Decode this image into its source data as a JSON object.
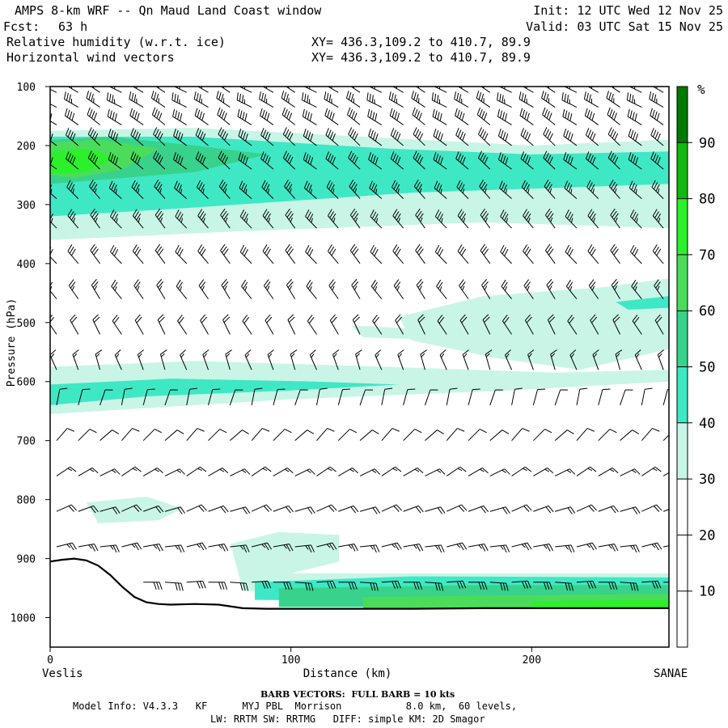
{
  "header": {
    "title": "AMPS 8-km WRF -- Qn Maud Land Coast window",
    "forecast_label": "Fcst:",
    "forecast_value": "63 h",
    "init": "Init: 12 UTC Wed 12 Nov 25",
    "valid": "Valid: 03 UTC Sat 15 Nov 25",
    "field1": "Relative humidity (w.r.t. ice)",
    "field2": "Horizontal wind vectors",
    "xy1": "XY= 436.3,109.2 to 410.7, 89.9",
    "xy2": "XY= 436.3,109.2 to 410.7, 89.9"
  },
  "footer": {
    "barb_note": "BARB VECTORS:  FULL BARB = 10 kts",
    "model_line1": "Model Info: V4.3.3   KF      MYJ PBL  Morrison           8.0 km,  60 levels,",
    "model_line2": "LW: RRTM SW: RRTMG   DIFF: simple KM: 2D Smagor"
  },
  "chart_data": {
    "type": "heatmap",
    "xlabel": "Distance (km)",
    "ylabel": "Pressure (hPa)",
    "x_start_label": "Veslis",
    "x_end_label": "SANAE",
    "xlim": [
      0,
      257
    ],
    "ylim": [
      1050,
      100
    ],
    "x_ticks": [
      0,
      100,
      200
    ],
    "y_ticks": [
      100,
      200,
      300,
      400,
      500,
      600,
      700,
      800,
      900,
      1000
    ],
    "colorbar": {
      "unit": "%",
      "levels": [
        0,
        10,
        20,
        30,
        40,
        50,
        60,
        70,
        80,
        90,
        100
      ],
      "tick_labels": [
        10,
        20,
        30,
        40,
        50,
        60,
        70,
        80,
        90
      ],
      "colors": [
        "#ffffff",
        "#ffffff",
        "#ffffff",
        "#c8f5e6",
        "#3ee8c4",
        "#38d28c",
        "#4cdc5c",
        "#2cf02c",
        "#10b810",
        "#007a00"
      ]
    },
    "rh_regions": [
      {
        "level": 30,
        "points": [
          [
            0,
            175
          ],
          [
            60,
            170
          ],
          [
            130,
            185
          ],
          [
            200,
            200
          ],
          [
            257,
            190
          ],
          [
            257,
            340
          ],
          [
            180,
            330
          ],
          [
            80,
            345
          ],
          [
            0,
            360
          ]
        ]
      },
      {
        "level": 40,
        "points": [
          [
            0,
            185
          ],
          [
            60,
            185
          ],
          [
            140,
            205
          ],
          [
            200,
            215
          ],
          [
            257,
            210
          ],
          [
            257,
            265
          ],
          [
            150,
            280
          ],
          [
            60,
            305
          ],
          [
            0,
            320
          ]
        ]
      },
      {
        "level": 50,
        "points": [
          [
            0,
            190
          ],
          [
            25,
            185
          ],
          [
            60,
            200
          ],
          [
            90,
            215
          ],
          [
            60,
            245
          ],
          [
            30,
            255
          ],
          [
            0,
            265
          ]
        ]
      },
      {
        "level": 60,
        "points": [
          [
            0,
            195
          ],
          [
            20,
            190
          ],
          [
            45,
            205
          ],
          [
            30,
            240
          ],
          [
            10,
            255
          ],
          [
            0,
            250
          ]
        ]
      },
      {
        "level": 70,
        "points": [
          [
            0,
            210
          ],
          [
            15,
            205
          ],
          [
            28,
            220
          ],
          [
            15,
            245
          ],
          [
            0,
            248
          ]
        ]
      },
      {
        "level": 30,
        "points": [
          [
            145,
            490
          ],
          [
            180,
            455
          ],
          [
            230,
            440
          ],
          [
            257,
            425
          ],
          [
            257,
            545
          ],
          [
            220,
            580
          ],
          [
            185,
            560
          ],
          [
            150,
            530
          ]
        ]
      },
      {
        "level": 30,
        "points": [
          [
            125,
            505
          ],
          [
            200,
            520
          ],
          [
            257,
            500
          ],
          [
            257,
            520
          ],
          [
            200,
            535
          ],
          [
            130,
            525
          ]
        ]
      },
      {
        "level": 40,
        "points": [
          [
            235,
            465
          ],
          [
            257,
            455
          ],
          [
            257,
            475
          ],
          [
            240,
            478
          ]
        ]
      },
      {
        "level": 30,
        "points": [
          [
            0,
            575
          ],
          [
            60,
            565
          ],
          [
            140,
            575
          ],
          [
            210,
            585
          ],
          [
            257,
            580
          ],
          [
            257,
            600
          ],
          [
            190,
            615
          ],
          [
            100,
            630
          ],
          [
            0,
            655
          ]
        ]
      },
      {
        "level": 40,
        "points": [
          [
            0,
            605
          ],
          [
            50,
            595
          ],
          [
            110,
            600
          ],
          [
            145,
            605
          ],
          [
            100,
            615
          ],
          [
            40,
            625
          ],
          [
            0,
            640
          ]
        ]
      },
      {
        "level": 30,
        "points": [
          [
            15,
            805
          ],
          [
            40,
            795
          ],
          [
            55,
            815
          ],
          [
            45,
            835
          ],
          [
            20,
            840
          ]
        ]
      },
      {
        "level": 30,
        "points": [
          [
            75,
            875
          ],
          [
            95,
            855
          ],
          [
            120,
            860
          ],
          [
            120,
            905
          ],
          [
            100,
            925
          ],
          [
            257,
            925
          ],
          [
            257,
            950
          ],
          [
            80,
            955
          ]
        ]
      },
      {
        "level": 40,
        "points": [
          [
            85,
            940
          ],
          [
            150,
            930
          ],
          [
            257,
            932
          ],
          [
            257,
            975
          ],
          [
            85,
            970
          ]
        ]
      },
      {
        "level": 50,
        "points": [
          [
            95,
            950
          ],
          [
            180,
            945
          ],
          [
            257,
            945
          ],
          [
            257,
            982
          ],
          [
            95,
            982
          ]
        ]
      },
      {
        "level": 60,
        "points": [
          [
            130,
            965
          ],
          [
            257,
            960
          ],
          [
            257,
            985
          ],
          [
            130,
            985
          ]
        ]
      },
      {
        "level": 70,
        "points": [
          [
            200,
            972
          ],
          [
            257,
            970
          ],
          [
            257,
            986
          ],
          [
            200,
            986
          ]
        ]
      }
    ],
    "terrain": {
      "x": [
        0,
        5,
        10,
        15,
        20,
        25,
        30,
        35,
        40,
        45,
        50,
        60,
        70,
        80,
        90,
        100,
        120,
        150,
        180,
        210,
        240,
        257
      ],
      "pressure": [
        905,
        902,
        900,
        903,
        912,
        928,
        948,
        965,
        974,
        977,
        978,
        977,
        978,
        984,
        985,
        985,
        985,
        985,
        984,
        984,
        984,
        984
      ]
    },
    "wind_barbs": {
      "columns_x": [
        0,
        9,
        18,
        27,
        36,
        45,
        54,
        63,
        72,
        81,
        90,
        99,
        108,
        117,
        126,
        135,
        144,
        153,
        162,
        171,
        180,
        189,
        198,
        207,
        216,
        225,
        234,
        243,
        252
      ],
      "levels": [
        110,
        135,
        165,
        200,
        240,
        290,
        340,
        400,
        460,
        520,
        580,
        640,
        700,
        760,
        820,
        880,
        940
      ],
      "direction_deg_by_level": [
        300,
        300,
        305,
        310,
        310,
        315,
        320,
        320,
        325,
        330,
        340,
        15,
        45,
        60,
        70,
        80,
        90
      ],
      "speed_kt_by_level": [
        35,
        35,
        40,
        40,
        40,
        35,
        35,
        30,
        25,
        20,
        15,
        10,
        10,
        15,
        20,
        25,
        30
      ]
    }
  }
}
